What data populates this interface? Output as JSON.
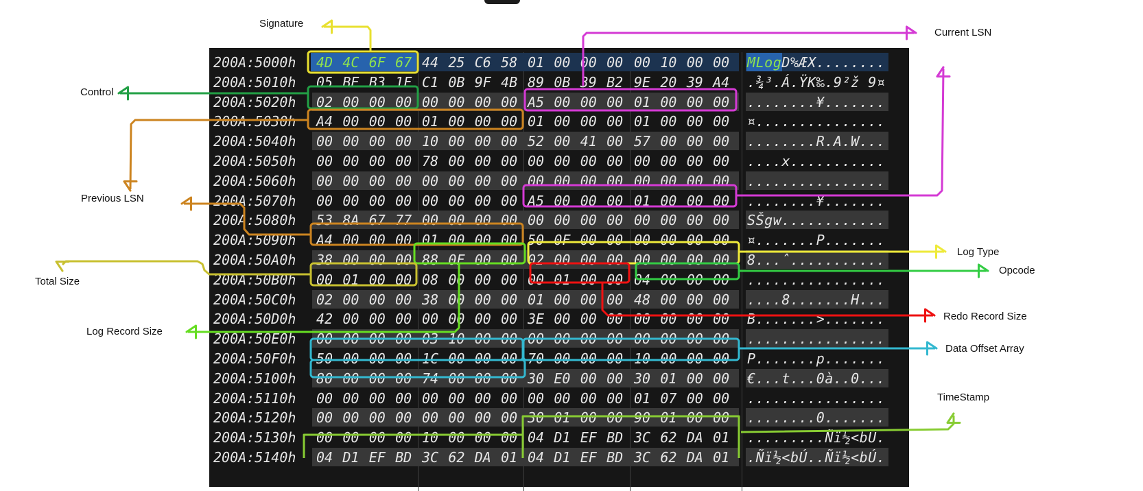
{
  "hex_dump": {
    "rows": [
      {
        "address": "200A:5000h",
        "bytes": [
          "4D",
          "4C",
          "6F",
          "67",
          "44",
          "25",
          "C6",
          "58",
          "01",
          "00",
          "00",
          "00",
          "00",
          "10",
          "00",
          "00"
        ],
        "ascii": "MLogD%ÆX........"
      },
      {
        "address": "200A:5010h",
        "bytes": [
          "05",
          "BE",
          "B3",
          "1F",
          "C1",
          "0B",
          "9F",
          "4B",
          "89",
          "0B",
          "39",
          "B2",
          "9E",
          "20",
          "39",
          "A4"
        ],
        "ascii": ".¾³.Á.ŸK‰.9²ž 9¤"
      },
      {
        "address": "200A:5020h",
        "bytes": [
          "02",
          "00",
          "00",
          "00",
          "00",
          "00",
          "00",
          "00",
          "A5",
          "00",
          "00",
          "00",
          "01",
          "00",
          "00",
          "00"
        ],
        "ascii": "........¥......."
      },
      {
        "address": "200A:5030h",
        "bytes": [
          "A4",
          "00",
          "00",
          "00",
          "01",
          "00",
          "00",
          "00",
          "01",
          "00",
          "00",
          "00",
          "01",
          "00",
          "00",
          "00"
        ],
        "ascii": "¤..............."
      },
      {
        "address": "200A:5040h",
        "bytes": [
          "00",
          "00",
          "00",
          "00",
          "10",
          "00",
          "00",
          "00",
          "52",
          "00",
          "41",
          "00",
          "57",
          "00",
          "00",
          "00"
        ],
        "ascii": "........R.A.W..."
      },
      {
        "address": "200A:5050h",
        "bytes": [
          "00",
          "00",
          "00",
          "00",
          "78",
          "00",
          "00",
          "00",
          "00",
          "00",
          "00",
          "00",
          "00",
          "00",
          "00",
          "00"
        ],
        "ascii": "....x..........."
      },
      {
        "address": "200A:5060h",
        "bytes": [
          "00",
          "00",
          "00",
          "00",
          "00",
          "00",
          "00",
          "00",
          "00",
          "00",
          "00",
          "00",
          "00",
          "00",
          "00",
          "00"
        ],
        "ascii": "................"
      },
      {
        "address": "200A:5070h",
        "bytes": [
          "00",
          "00",
          "00",
          "00",
          "00",
          "00",
          "00",
          "00",
          "A5",
          "00",
          "00",
          "00",
          "01",
          "00",
          "00",
          "00"
        ],
        "ascii": "........¥......."
      },
      {
        "address": "200A:5080h",
        "bytes": [
          "53",
          "8A",
          "67",
          "77",
          "00",
          "00",
          "00",
          "00",
          "00",
          "00",
          "00",
          "00",
          "00",
          "00",
          "00",
          "00"
        ],
        "ascii": "SŠgw............"
      },
      {
        "address": "200A:5090h",
        "bytes": [
          "A4",
          "00",
          "00",
          "00",
          "01",
          "00",
          "00",
          "00",
          "50",
          "0F",
          "00",
          "00",
          "00",
          "00",
          "00",
          "00"
        ],
        "ascii": "¤.......P......."
      },
      {
        "address": "200A:50A0h",
        "bytes": [
          "38",
          "00",
          "00",
          "00",
          "88",
          "0F",
          "00",
          "00",
          "02",
          "00",
          "00",
          "00",
          "00",
          "00",
          "00",
          "00"
        ],
        "ascii": "8...ˆ..........."
      },
      {
        "address": "200A:50B0h",
        "bytes": [
          "00",
          "01",
          "00",
          "00",
          "08",
          "00",
          "00",
          "00",
          "00",
          "01",
          "00",
          "00",
          "04",
          "00",
          "00",
          "00"
        ],
        "ascii": "................"
      },
      {
        "address": "200A:50C0h",
        "bytes": [
          "02",
          "00",
          "00",
          "00",
          "38",
          "00",
          "00",
          "00",
          "01",
          "00",
          "00",
          "00",
          "48",
          "00",
          "00",
          "00"
        ],
        "ascii": "....8.......H..."
      },
      {
        "address": "200A:50D0h",
        "bytes": [
          "42",
          "00",
          "00",
          "00",
          "00",
          "00",
          "00",
          "00",
          "3E",
          "00",
          "00",
          "00",
          "00",
          "00",
          "00",
          "00"
        ],
        "ascii": "B.......>......."
      },
      {
        "address": "200A:50E0h",
        "bytes": [
          "00",
          "00",
          "00",
          "00",
          "03",
          "10",
          "00",
          "00",
          "00",
          "00",
          "00",
          "00",
          "00",
          "00",
          "00",
          "00"
        ],
        "ascii": "................"
      },
      {
        "address": "200A:50F0h",
        "bytes": [
          "50",
          "00",
          "00",
          "00",
          "1C",
          "00",
          "00",
          "00",
          "70",
          "00",
          "00",
          "00",
          "10",
          "00",
          "00",
          "00"
        ],
        "ascii": "P.......p......."
      },
      {
        "address": "200A:5100h",
        "bytes": [
          "80",
          "00",
          "00",
          "00",
          "74",
          "00",
          "00",
          "00",
          "30",
          "E0",
          "00",
          "00",
          "30",
          "01",
          "00",
          "00"
        ],
        "ascii": "€...t...0à..0..."
      },
      {
        "address": "200A:5110h",
        "bytes": [
          "00",
          "00",
          "00",
          "00",
          "00",
          "00",
          "00",
          "00",
          "00",
          "00",
          "00",
          "00",
          "01",
          "07",
          "00",
          "00"
        ],
        "ascii": "................"
      },
      {
        "address": "200A:5120h",
        "bytes": [
          "00",
          "00",
          "00",
          "00",
          "00",
          "00",
          "00",
          "00",
          "30",
          "01",
          "00",
          "00",
          "90",
          "01",
          "00",
          "00"
        ],
        "ascii": "........0......."
      },
      {
        "address": "200A:5130h",
        "bytes": [
          "00",
          "00",
          "00",
          "00",
          "10",
          "00",
          "00",
          "00",
          "04",
          "D1",
          "EF",
          "BD",
          "3C",
          "62",
          "DA",
          "01"
        ],
        "ascii": ".........Ñï½<bÚ."
      },
      {
        "address": "200A:5140h",
        "bytes": [
          "04",
          "D1",
          "EF",
          "BD",
          "3C",
          "62",
          "DA",
          "01",
          "04",
          "D1",
          "EF",
          "BD",
          "3C",
          "62",
          "DA",
          "01"
        ],
        "ascii": ".Ñï½<bÚ..Ñï½<bÚ."
      }
    ]
  },
  "annotations": {
    "signature": {
      "label": "Signature",
      "color": "#e8e030"
    },
    "current_lsn": {
      "label": "Current LSN",
      "color": "#d43ad4"
    },
    "control": {
      "label": "Control",
      "color": "#22a045"
    },
    "previous_lsn": {
      "label": "Previous LSN",
      "color": "#cc8420"
    },
    "log_type": {
      "label": "Log Type",
      "color": "#eeea3a"
    },
    "opcode": {
      "label": "Opcode",
      "color": "#33cc44"
    },
    "total_size": {
      "label": "Total Size",
      "color": "#c8c030"
    },
    "redo_record_size": {
      "label": "Redo Record Size",
      "color": "#ee1111"
    },
    "log_record_size": {
      "label": "Log Record Size",
      "color": "#66dd22"
    },
    "data_offset_array": {
      "label": "Data Offset Array",
      "color": "#33b8d0"
    },
    "timestamp": {
      "label": "TimeStamp",
      "color": "#88cc33"
    }
  }
}
